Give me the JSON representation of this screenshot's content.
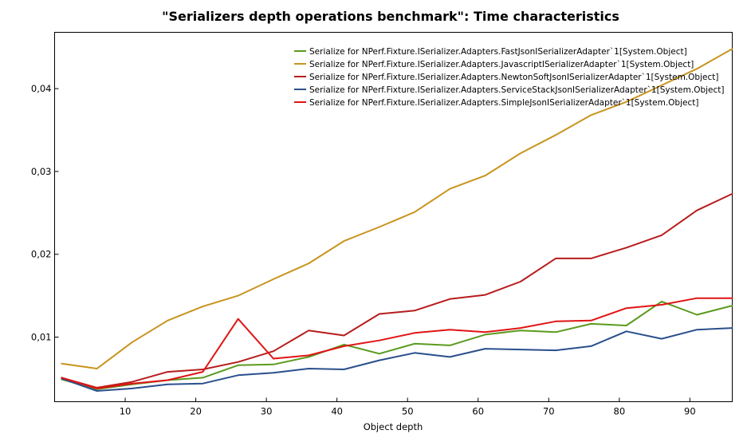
{
  "chart_data": {
    "type": "line",
    "title": "\"Serializers depth operations benchmark\": Time characteristics",
    "xlabel": "Object depth",
    "ylabel": "",
    "xlim": [
      0,
      96
    ],
    "ylim": [
      0.0022,
      0.0468
    ],
    "x_ticks": [
      10,
      20,
      30,
      40,
      50,
      60,
      70,
      80,
      90
    ],
    "x_tick_labels": [
      "10",
      "20",
      "30",
      "40",
      "50",
      "60",
      "70",
      "80",
      "90"
    ],
    "y_ticks": [
      0.01,
      0.02,
      0.03,
      0.04
    ],
    "y_tick_labels": [
      "0,01",
      "0,02",
      "0,03",
      "0,04"
    ],
    "grid": false,
    "legend_position": "top-right",
    "x": [
      1,
      6,
      11,
      16,
      21,
      26,
      31,
      36,
      41,
      46,
      51,
      56,
      61,
      66,
      71,
      76,
      81,
      86,
      91,
      96
    ],
    "series": [
      {
        "name": "Serialize for NPerf.Fixture.ISerializer.Adapters.FastJsonISerializerAdapter`1[System.Object]",
        "color": "#5a9a1e",
        "values": [
          0.0049,
          0.0037,
          0.0043,
          0.0048,
          0.0051,
          0.0066,
          0.0067,
          0.0076,
          0.0091,
          0.008,
          0.0092,
          0.009,
          0.0103,
          0.0108,
          0.0106,
          0.0116,
          0.0114,
          0.0143,
          0.0127,
          0.0138
        ]
      },
      {
        "name": "Serialize for NPerf.Fixture.ISerializer.Adapters.JavascriptISerializerAdapter`1[System.Object]",
        "color": "#c8941e",
        "values": [
          0.0068,
          0.0062,
          0.0094,
          0.012,
          0.0137,
          0.015,
          0.017,
          0.0189,
          0.0216,
          0.0233,
          0.0251,
          0.0279,
          0.0295,
          0.0322,
          0.0344,
          0.0368,
          0.0384,
          0.0404,
          0.0424,
          0.0448
        ]
      },
      {
        "name": "Serialize for NPerf.Fixture.ISerializer.Adapters.NewtonSoftJsonISerializerAdapter`1[System.Object]",
        "color": "#b81c1c",
        "values": [
          0.0051,
          0.0039,
          0.0046,
          0.0058,
          0.0061,
          0.007,
          0.0083,
          0.0108,
          0.0102,
          0.0128,
          0.0132,
          0.0146,
          0.0151,
          0.0167,
          0.0195,
          0.0195,
          0.0208,
          0.0223,
          0.0253,
          0.0273
        ]
      },
      {
        "name": "Serialize for NPerf.Fixture.ISerializer.Adapters.ServiceStackJsonISerializerAdapter`1[System.Object]",
        "color": "#2a4f8c",
        "values": [
          0.005,
          0.0035,
          0.0038,
          0.0043,
          0.0044,
          0.0054,
          0.0057,
          0.0062,
          0.0061,
          0.0072,
          0.0081,
          0.0076,
          0.0086,
          0.0085,
          0.0084,
          0.0089,
          0.0107,
          0.0098,
          0.0109,
          0.0111
        ]
      },
      {
        "name": "Serialize for NPerf.Fixture.ISerializer.Adapters.SimpleJsonISerializerAdapter`1[System.Object]",
        "color": "#e01414",
        "values": [
          0.0051,
          0.0038,
          0.0044,
          0.0048,
          0.0058,
          0.0122,
          0.0074,
          0.0078,
          0.0089,
          0.0096,
          0.0105,
          0.0109,
          0.0106,
          0.0111,
          0.0119,
          0.012,
          0.0135,
          0.0139,
          0.0147,
          0.0147
        ]
      }
    ]
  }
}
